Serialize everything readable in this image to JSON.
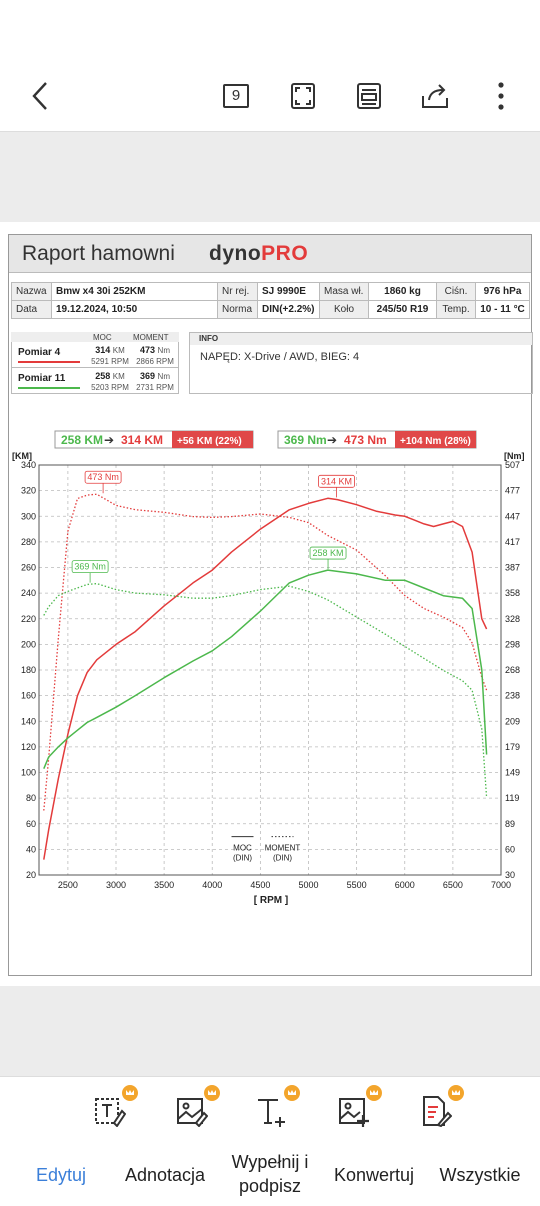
{
  "toolbar": {
    "page_count": "9",
    "icons": [
      "back-arrow-icon",
      "page-count-icon",
      "fullscreen-icon",
      "page-layout-icon",
      "share-icon",
      "more-vert-icon"
    ]
  },
  "report": {
    "title": "Raport hamowni",
    "logo_left": "dyno",
    "logo_right": "PRO",
    "info_table": {
      "row1": [
        {
          "label": "Nazwa",
          "value": "Bmw x4 30i 252KM"
        },
        {
          "label": "Nr rej.",
          "value": "SJ 9990E"
        },
        {
          "label": "Masa wł.",
          "value": "1860 kg"
        },
        {
          "label": "Ciśn.",
          "value": "976 hPa"
        }
      ],
      "row2": [
        {
          "label": "Data",
          "value": "19.12.2024, 10:50"
        },
        {
          "label": "Norma",
          "value": "DIN(+2.2%)"
        },
        {
          "label": "Koło",
          "value": "245/50 R19"
        },
        {
          "label": "Temp.",
          "value": "10 - 11 °C"
        }
      ]
    },
    "measurements": {
      "head_moc": "MOC",
      "head_moment": "MOMENT",
      "rows": [
        {
          "name": "Pomiar 4",
          "color": "#e33b3b",
          "power": "314",
          "power_unit": "KM",
          "power_rpm": "5291 RPM",
          "torque": "473",
          "torque_unit": "Nm",
          "torque_rpm": "2866 RPM"
        },
        {
          "name": "Pomiar 11",
          "color": "#4cb84c",
          "power": "258",
          "power_unit": "KM",
          "power_rpm": "5203 RPM",
          "torque": "369",
          "torque_unit": "Nm",
          "torque_rpm": "2731 RPM"
        }
      ]
    },
    "info": {
      "header": "INFO",
      "text": "NAPĘD: X-Drive / AWD,  BIEG: 4"
    }
  },
  "chart_data": {
    "type": "line",
    "summary_power": {
      "from": "258 KM",
      "to": "314 KM",
      "delta": "+56 KM  (22%)"
    },
    "summary_torque": {
      "from": "369 Nm",
      "to": "473 Nm",
      "delta": "+104 Nm  (28%)"
    },
    "ylabel_left": "[KM]",
    "ylabel_right": "[Nm]",
    "xlabel": "[ RPM ]",
    "xlim": [
      2200,
      7000
    ],
    "ylim_left": [
      20,
      340
    ],
    "ylim_right": [
      30,
      507
    ],
    "x_ticks": [
      2500,
      3000,
      3500,
      4000,
      4500,
      5000,
      5500,
      6000,
      6500,
      7000
    ],
    "y_ticks_left": [
      20,
      40,
      60,
      80,
      100,
      120,
      140,
      160,
      180,
      200,
      220,
      240,
      260,
      280,
      300,
      320,
      340
    ],
    "y_ticks_right": [
      "30",
      "60",
      "89",
      "119",
      "149",
      "179",
      "209",
      "238",
      "268",
      "298",
      "328",
      "358",
      "387",
      "417",
      "447",
      "477",
      "507"
    ],
    "legend": {
      "solid": "MOC\n(DIN)",
      "dotted": "MOMENT\n(DIN)"
    },
    "peak_labels": [
      {
        "text": "314 KM",
        "series": "Pomiar 4 MOC",
        "x": 5291,
        "y": 314
      },
      {
        "text": "258 KM",
        "series": "Pomiar 11 MOC",
        "x": 5203,
        "y": 258
      },
      {
        "text": "473 Nm",
        "series": "Pomiar 4 MOMENT",
        "x": 2866,
        "y": 473
      },
      {
        "text": "369 Nm",
        "series": "Pomiar 11 MOMENT",
        "x": 2731,
        "y": 369
      }
    ],
    "series": [
      {
        "name": "Pomiar 4 MOC",
        "color": "#e33b3b",
        "style": "solid",
        "axis": "left",
        "x": [
          2250,
          2300,
          2400,
          2500,
          2600,
          2700,
          2800,
          3000,
          3200,
          3500,
          3800,
          4000,
          4200,
          4500,
          4800,
          5000,
          5200,
          5300,
          5500,
          5700,
          5900,
          6000,
          6100,
          6200,
          6300,
          6400,
          6500,
          6600,
          6700,
          6800,
          6850
        ],
        "y": [
          32,
          55,
          95,
          130,
          160,
          178,
          188,
          200,
          210,
          230,
          248,
          258,
          272,
          290,
          305,
          310,
          314,
          313,
          309,
          304,
          301,
          300,
          297,
          294,
          292,
          294,
          296,
          292,
          272,
          220,
          212
        ]
      },
      {
        "name": "Pomiar 4 MOMENT",
        "color": "#e33b3b",
        "style": "dotted",
        "axis": "right",
        "x": [
          2250,
          2300,
          2400,
          2500,
          2600,
          2700,
          2800,
          3000,
          3200,
          3500,
          3800,
          4000,
          4200,
          4500,
          4800,
          5000,
          5200,
          5500,
          5800,
          6000,
          6200,
          6400,
          6600,
          6700,
          6800,
          6850
        ],
        "y": [
          105,
          165,
          305,
          430,
          468,
          472,
          473,
          460,
          455,
          452,
          447,
          446,
          447,
          450,
          446,
          440,
          425,
          408,
          378,
          355,
          340,
          330,
          318,
          300,
          260,
          245
        ]
      },
      {
        "name": "Pomiar 11 MOC",
        "color": "#4cb84c",
        "style": "solid",
        "axis": "left",
        "x": [
          2250,
          2300,
          2400,
          2500,
          2600,
          2700,
          2800,
          3000,
          3200,
          3500,
          3800,
          4000,
          4200,
          4500,
          4800,
          5000,
          5200,
          5500,
          5800,
          6000,
          6200,
          6400,
          6600,
          6700,
          6800,
          6850
        ],
        "y": [
          103,
          112,
          120,
          127,
          133,
          139,
          143,
          151,
          160,
          174,
          187,
          195,
          206,
          226,
          248,
          254,
          258,
          255,
          250,
          250,
          244,
          238,
          236,
          228,
          180,
          114
        ]
      },
      {
        "name": "Pomiar 11 MOMENT",
        "color": "#4cb84c",
        "style": "dotted",
        "axis": "right",
        "x": [
          2250,
          2300,
          2400,
          2500,
          2600,
          2700,
          2800,
          3000,
          3200,
          3500,
          3800,
          4000,
          4200,
          4500,
          4800,
          5000,
          5200,
          5500,
          5800,
          6000,
          6200,
          6400,
          6600,
          6700,
          6800,
          6850
        ],
        "y": [
          332,
          342,
          355,
          360,
          364,
          368,
          369,
          362,
          358,
          356,
          352,
          352,
          355,
          362,
          366,
          360,
          350,
          330,
          310,
          296,
          282,
          268,
          256,
          245,
          200,
          120
        ]
      }
    ]
  },
  "tools": [
    "text-edit-icon",
    "image-edit-icon",
    "add-text-icon",
    "add-image-icon",
    "pdf-edit-icon"
  ],
  "bottom_nav": {
    "items": [
      "Edytuj",
      "Adnotacja",
      "Wypełnij i\npodpisz",
      "Konwertuj",
      "Wszystkie"
    ]
  }
}
